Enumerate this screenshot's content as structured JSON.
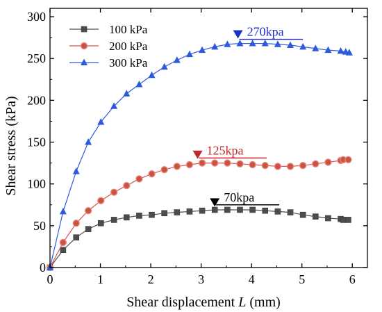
{
  "chart_data": {
    "type": "line",
    "xlabel_prefix": "Shear displacement ",
    "xlabel_var": "L",
    "xlabel_suffix": " (mm)",
    "ylabel": "Shear stress (kPa)",
    "xlim": [
      0,
      6.3
    ],
    "ylim": [
      0,
      310
    ],
    "xticks": [
      0,
      1,
      2,
      3,
      4,
      5,
      6
    ],
    "yticks": [
      0,
      50,
      100,
      150,
      200,
      250,
      300
    ],
    "legend_position": "top-left",
    "series": [
      {
        "name": "100 kPa",
        "color": "#4d4d4d",
        "marker": "square",
        "x": [
          0,
          0.26,
          0.52,
          0.76,
          1.01,
          1.27,
          1.52,
          1.77,
          2.02,
          2.27,
          2.52,
          2.77,
          3.02,
          3.27,
          3.52,
          3.77,
          4.02,
          4.27,
          4.52,
          4.77,
          5.02,
          5.27,
          5.52,
          5.77,
          5.82,
          5.92
        ],
        "y": [
          0,
          21,
          36,
          46,
          53,
          57,
          60,
          62,
          63,
          65,
          66,
          67,
          68,
          69,
          69,
          69,
          69,
          68,
          67,
          66,
          63,
          61,
          59,
          58,
          57,
          57
        ]
      },
      {
        "name": "200 kPa",
        "color": "#d9534f",
        "marker": "circle",
        "x": [
          0,
          0.26,
          0.52,
          0.76,
          1.01,
          1.27,
          1.52,
          1.77,
          2.02,
          2.27,
          2.52,
          2.77,
          3.02,
          3.27,
          3.52,
          3.77,
          4.02,
          4.27,
          4.52,
          4.77,
          5.02,
          5.27,
          5.52,
          5.77,
          5.82,
          5.92
        ],
        "y": [
          0,
          30,
          53,
          68,
          80,
          90,
          98,
          106,
          112,
          117,
          121,
          123,
          125,
          125,
          125,
          124,
          123,
          122,
          121,
          121,
          122,
          124,
          126,
          128,
          129,
          129
        ]
      },
      {
        "name": "300 kPa",
        "color": "#2e59d9",
        "marker": "triangle",
        "x": [
          0,
          0.26,
          0.52,
          0.76,
          1.01,
          1.27,
          1.52,
          1.77,
          2.02,
          2.27,
          2.52,
          2.77,
          3.02,
          3.27,
          3.52,
          3.77,
          4.02,
          4.27,
          4.52,
          4.77,
          5.02,
          5.27,
          5.52,
          5.77,
          5.87,
          5.94
        ],
        "y": [
          0,
          67,
          115,
          150,
          174,
          193,
          208,
          219,
          230,
          240,
          248,
          255,
          260,
          264,
          267,
          268,
          268,
          268,
          267,
          266,
          264,
          262,
          260,
          259,
          258,
          257
        ]
      }
    ],
    "annotations": [
      {
        "text": "70kpa",
        "color": "#000000",
        "arrow_x": 3.27,
        "arrow_y": 77,
        "line_x2": 4.55,
        "line_y": 75
      },
      {
        "text": "125kpa",
        "color": "#c0282c",
        "arrow_x": 2.93,
        "arrow_y": 134,
        "line_x2": 4.3,
        "line_y": 131
      },
      {
        "text": "270kpa",
        "color": "#1f2fc4",
        "arrow_x": 3.73,
        "arrow_y": 278,
        "line_x2": 5.02,
        "line_y": 273
      }
    ]
  }
}
